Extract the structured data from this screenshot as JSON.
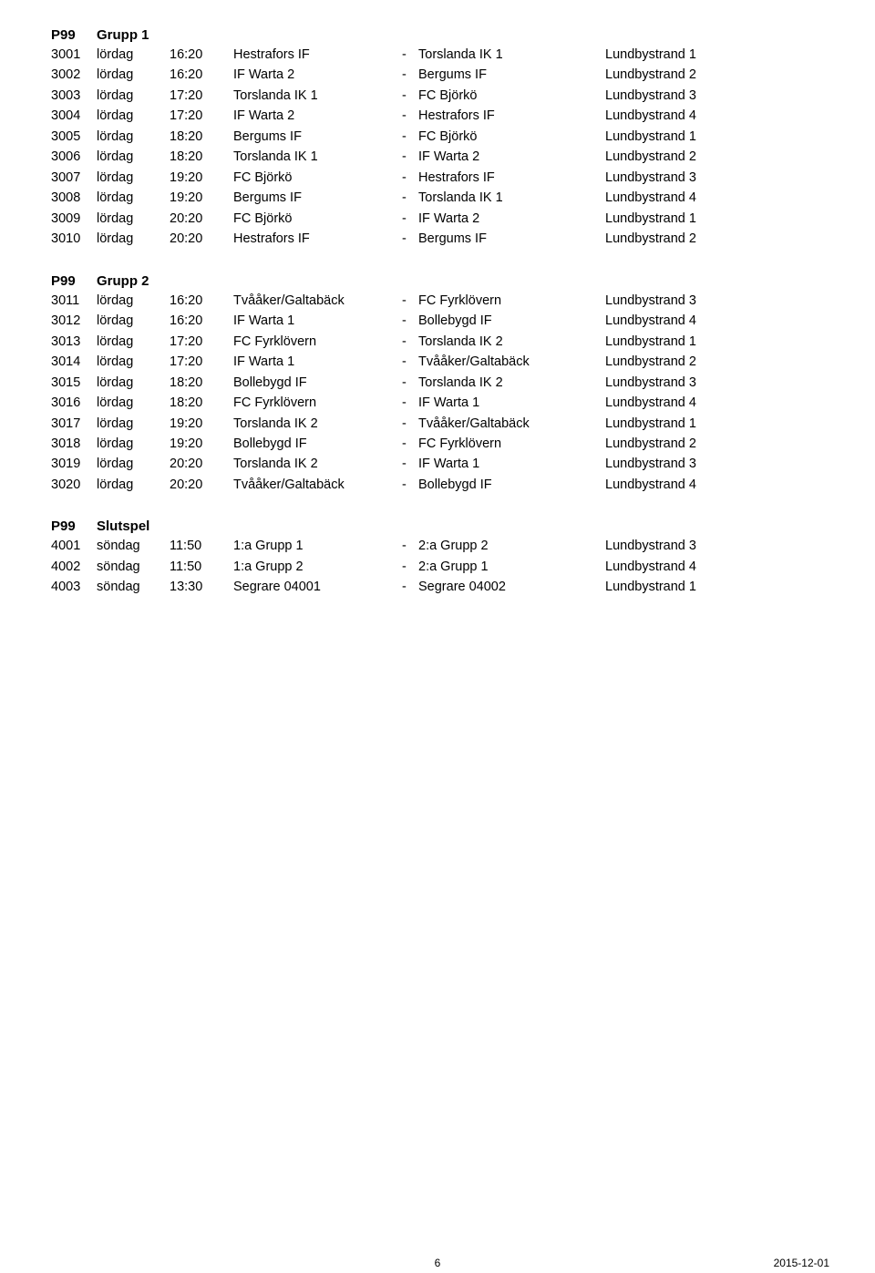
{
  "sections": [
    {
      "category": "P99",
      "group": "Grupp 1",
      "rows": [
        {
          "id": "3001",
          "day": "lördag",
          "time": "16:20",
          "home": "Hestrafors IF",
          "away": "Torslanda IK 1",
          "venue": "Lundbystrand 1"
        },
        {
          "id": "3002",
          "day": "lördag",
          "time": "16:20",
          "home": "IF Warta 2",
          "away": "Bergums IF",
          "venue": "Lundbystrand 2"
        },
        {
          "id": "3003",
          "day": "lördag",
          "time": "17:20",
          "home": "Torslanda IK 1",
          "away": "FC Björkö",
          "venue": "Lundbystrand 3"
        },
        {
          "id": "3004",
          "day": "lördag",
          "time": "17:20",
          "home": "IF Warta 2",
          "away": "Hestrafors IF",
          "venue": "Lundbystrand 4"
        },
        {
          "id": "3005",
          "day": "lördag",
          "time": "18:20",
          "home": "Bergums IF",
          "away": "FC Björkö",
          "venue": "Lundbystrand 1"
        },
        {
          "id": "3006",
          "day": "lördag",
          "time": "18:20",
          "home": "Torslanda IK 1",
          "away": "IF Warta 2",
          "venue": "Lundbystrand 2"
        },
        {
          "id": "3007",
          "day": "lördag",
          "time": "19:20",
          "home": "FC Björkö",
          "away": "Hestrafors IF",
          "venue": "Lundbystrand 3"
        },
        {
          "id": "3008",
          "day": "lördag",
          "time": "19:20",
          "home": "Bergums IF",
          "away": "Torslanda IK 1",
          "venue": "Lundbystrand 4"
        },
        {
          "id": "3009",
          "day": "lördag",
          "time": "20:20",
          "home": "FC Björkö",
          "away": "IF Warta 2",
          "venue": "Lundbystrand 1"
        },
        {
          "id": "3010",
          "day": "lördag",
          "time": "20:20",
          "home": "Hestrafors IF",
          "away": "Bergums IF",
          "venue": "Lundbystrand 2"
        }
      ]
    },
    {
      "category": "P99",
      "group": "Grupp 2",
      "rows": [
        {
          "id": "3011",
          "day": "lördag",
          "time": "16:20",
          "home": "Tvååker/Galtabäck",
          "away": "FC Fyrklövern",
          "venue": "Lundbystrand 3"
        },
        {
          "id": "3012",
          "day": "lördag",
          "time": "16:20",
          "home": "IF Warta 1",
          "away": "Bollebygd IF",
          "venue": "Lundbystrand 4"
        },
        {
          "id": "3013",
          "day": "lördag",
          "time": "17:20",
          "home": "FC Fyrklövern",
          "away": "Torslanda IK 2",
          "venue": "Lundbystrand 1"
        },
        {
          "id": "3014",
          "day": "lördag",
          "time": "17:20",
          "home": "IF Warta 1",
          "away": "Tvååker/Galtabäck",
          "venue": "Lundbystrand 2"
        },
        {
          "id": "3015",
          "day": "lördag",
          "time": "18:20",
          "home": "Bollebygd IF",
          "away": "Torslanda IK 2",
          "venue": "Lundbystrand 3"
        },
        {
          "id": "3016",
          "day": "lördag",
          "time": "18:20",
          "home": "FC Fyrklövern",
          "away": "IF Warta 1",
          "venue": "Lundbystrand 4"
        },
        {
          "id": "3017",
          "day": "lördag",
          "time": "19:20",
          "home": "Torslanda IK 2",
          "away": "Tvååker/Galtabäck",
          "venue": "Lundbystrand 1"
        },
        {
          "id": "3018",
          "day": "lördag",
          "time": "19:20",
          "home": "Bollebygd IF",
          "away": "FC Fyrklövern",
          "venue": "Lundbystrand 2"
        },
        {
          "id": "3019",
          "day": "lördag",
          "time": "20:20",
          "home": "Torslanda IK 2",
          "away": "IF Warta 1",
          "venue": "Lundbystrand 3"
        },
        {
          "id": "3020",
          "day": "lördag",
          "time": "20:20",
          "home": "Tvååker/Galtabäck",
          "away": "Bollebygd IF",
          "venue": "Lundbystrand 4"
        }
      ]
    },
    {
      "category": "P99",
      "group": "Slutspel",
      "rows": [
        {
          "id": "4001",
          "day": "söndag",
          "time": "11:50",
          "home": "1:a Grupp 1",
          "away": "2:a Grupp 2",
          "venue": "Lundbystrand 3"
        },
        {
          "id": "4002",
          "day": "söndag",
          "time": "11:50",
          "home": "1:a Grupp 2",
          "away": "2:a Grupp 1",
          "venue": "Lundbystrand 4"
        },
        {
          "id": "4003",
          "day": "söndag",
          "time": "13:30",
          "home": "Segrare 04001",
          "away": "Segrare 04002",
          "venue": "Lundbystrand 1"
        }
      ]
    }
  ],
  "separator": "-",
  "footer": {
    "page": "6",
    "date": "2015-12-01"
  }
}
